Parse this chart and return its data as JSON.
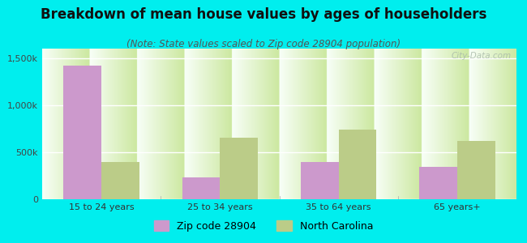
{
  "title": "Breakdown of mean house values by ages of householders",
  "subtitle": "(Note: State values scaled to Zip code 28904 population)",
  "categories": [
    "15 to 24 years",
    "25 to 34 years",
    "35 to 64 years",
    "65 years+"
  ],
  "zip_values": [
    1420000,
    230000,
    400000,
    340000
  ],
  "nc_values": [
    400000,
    650000,
    740000,
    620000
  ],
  "zip_color": "#cc99cc",
  "nc_color": "#bbcc88",
  "background_outer": "#00eeee",
  "background_inner_top": "#f8fff8",
  "background_inner_bottom": "#cce8a0",
  "ylim": [
    0,
    1600000
  ],
  "yticks": [
    0,
    500000,
    1000000,
    1500000
  ],
  "ytick_labels": [
    "0",
    "500k",
    "1,000k",
    "1,500k"
  ],
  "legend_zip_label": "Zip code 28904",
  "legend_nc_label": "North Carolina",
  "watermark": "City-Data.com",
  "title_fontsize": 12,
  "subtitle_fontsize": 8.5,
  "tick_fontsize": 8,
  "legend_fontsize": 9
}
